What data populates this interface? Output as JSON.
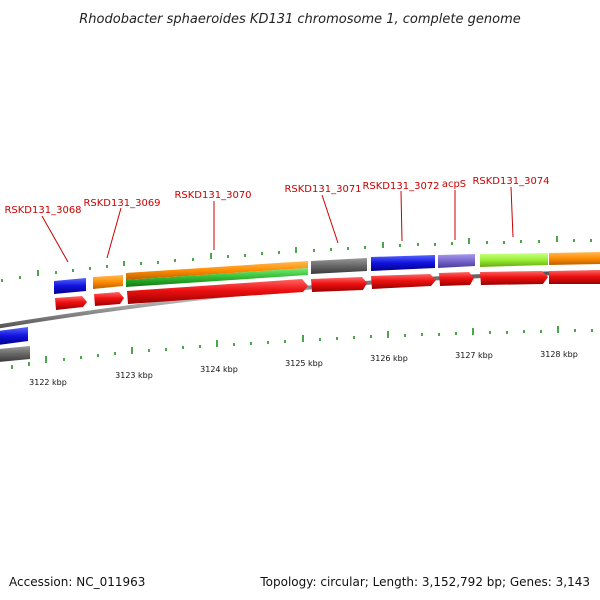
{
  "title": "Rhodobacter sphaeroides KD131 chromosome 1, complete genome",
  "footer": {
    "accession": "Accession: NC_011963",
    "summary": "Topology: circular; Length: 3,152,792 bp; Genes: 3,143"
  },
  "colors": {
    "backbone": "#888888",
    "cds_forward": "#ee1111",
    "label": "#cc0000",
    "tick": "#118811",
    "blue": "#1111dd",
    "orange": "#ff8c00",
    "green": "#33bb33",
    "gray": "#666666",
    "purple": "#7766cc",
    "lime": "#99ee33"
  },
  "gene_labels": [
    "RSKD131_3068",
    "RSKD131_3069",
    "RSKD131_3070",
    "RSKD131_3071",
    "RSKD131_3072",
    "acpS",
    "RSKD131_3074"
  ],
  "kbp_labels": [
    "3122 kbp",
    "3123 kbp",
    "3124 kbp",
    "3125 kbp",
    "3126 kbp",
    "3127 kbp",
    "3128 kbp"
  ]
}
